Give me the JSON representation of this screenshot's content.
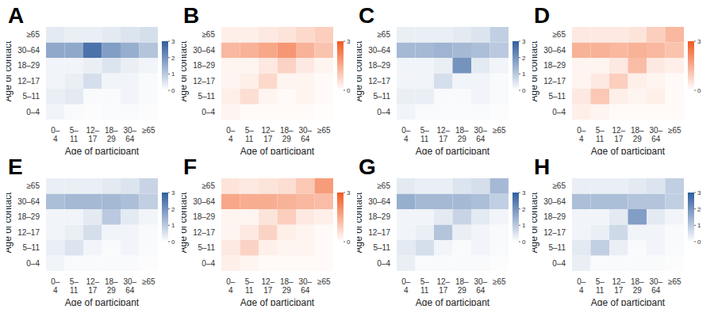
{
  "chart_data": [
    {
      "type": "heatmap",
      "title": "A",
      "x_label": "Age of participant",
      "y_label": "Age of contact",
      "categories": [
        "0–4",
        "5–11",
        "12–17",
        "18–29",
        "30–64",
        "≥65"
      ],
      "y_categories": [
        "0–4",
        "5–11",
        "12–17",
        "18–29",
        "30–64",
        "≥65"
      ],
      "color": "#2f5e9e",
      "colorbar_range": [
        0,
        3
      ],
      "colorbar_ticks": [
        0,
        1,
        2,
        3
      ],
      "cells": [
        [
          0.2,
          0.1,
          0.05,
          0.1,
          0.1,
          0.05
        ],
        [
          0.3,
          0.4,
          0.1,
          0.1,
          0.2,
          0.1
        ],
        [
          0.2,
          0.3,
          0.6,
          0.2,
          0.2,
          0.1
        ],
        [
          0.2,
          0.2,
          0.3,
          0.5,
          0.3,
          0.2
        ],
        [
          1.6,
          1.6,
          2.6,
          1.8,
          1.5,
          1.1
        ],
        [
          0.4,
          0.3,
          0.3,
          0.4,
          0.5,
          0.6
        ]
      ]
    },
    {
      "type": "heatmap",
      "title": "B",
      "x_label": "Age of participant",
      "y_label": "Age of contact",
      "categories": [
        "0–4",
        "5–11",
        "12–17",
        "18–29",
        "30–64",
        "≥65"
      ],
      "y_categories": [
        "0–4",
        "5–11",
        "12–17",
        "18–29",
        "30–64",
        "≥65"
      ],
      "color": "#f15a22",
      "colorbar_range": [
        0,
        3
      ],
      "colorbar_ticks": [
        0,
        3
      ],
      "cells": [
        [
          0.2,
          0.1,
          0.1,
          0.1,
          0.1,
          0.05
        ],
        [
          0.3,
          0.6,
          0.2,
          0.1,
          0.2,
          0.1
        ],
        [
          0.2,
          0.3,
          0.7,
          0.2,
          0.2,
          0.1
        ],
        [
          0.2,
          0.2,
          0.4,
          0.8,
          0.4,
          0.2
        ],
        [
          1.3,
          1.4,
          1.6,
          1.9,
          1.4,
          1.1
        ],
        [
          0.3,
          0.3,
          0.4,
          0.5,
          0.7,
          0.9
        ]
      ]
    },
    {
      "type": "heatmap",
      "title": "C",
      "x_label": "Age of participant",
      "y_label": "Age of contact",
      "categories": [
        "0–4",
        "5–11",
        "12–17",
        "18–29",
        "30–64",
        "≥65"
      ],
      "y_categories": [
        "0–4",
        "5–11",
        "12–17",
        "18–29",
        "30–64",
        "≥65"
      ],
      "color": "#2f5e9e",
      "colorbar_range": [
        0,
        3
      ],
      "colorbar_ticks": [
        0,
        1,
        2,
        3
      ],
      "cells": [
        [
          0.2,
          0.1,
          0.1,
          0.1,
          0.1,
          0.05
        ],
        [
          0.3,
          0.3,
          0.1,
          0.1,
          0.2,
          0.1
        ],
        [
          0.2,
          0.2,
          0.6,
          0.2,
          0.2,
          0.1
        ],
        [
          0.2,
          0.2,
          0.3,
          2.0,
          0.4,
          0.2
        ],
        [
          1.3,
          1.3,
          1.4,
          1.3,
          1.2,
          1.0
        ],
        [
          0.3,
          0.3,
          0.3,
          0.4,
          0.5,
          0.9
        ]
      ]
    },
    {
      "type": "heatmap",
      "title": "D",
      "x_label": "Age of participant",
      "y_label": "Age of contact",
      "categories": [
        "0–4",
        "5–11",
        "12–17",
        "18–29",
        "30–64",
        "≥65"
      ],
      "y_categories": [
        "0–4",
        "5–11",
        "12–17",
        "18–29",
        "30–64",
        "≥65"
      ],
      "color": "#f15a22",
      "colorbar_range": [
        0,
        3
      ],
      "colorbar_ticks": [
        0,
        3
      ],
      "cells": [
        [
          0.3,
          0.2,
          0.1,
          0.1,
          0.1,
          0.1
        ],
        [
          0.4,
          1.0,
          0.3,
          0.2,
          0.3,
          0.1
        ],
        [
          0.2,
          0.4,
          0.9,
          0.3,
          0.2,
          0.1
        ],
        [
          0.2,
          0.2,
          0.4,
          1.2,
          0.4,
          0.3
        ],
        [
          1.4,
          1.4,
          1.3,
          1.4,
          1.3,
          1.1
        ],
        [
          0.4,
          0.4,
          0.4,
          0.5,
          0.9,
          1.3
        ]
      ]
    },
    {
      "type": "heatmap",
      "title": "E",
      "x_label": "Age of participant",
      "y_label": "Age of contact",
      "categories": [
        "0–4",
        "5–11",
        "12–17",
        "18–29",
        "30–64",
        "≥65"
      ],
      "y_categories": [
        "0–4",
        "5–11",
        "12–17",
        "18–29",
        "30–64",
        "≥65"
      ],
      "color": "#2f5e9e",
      "colorbar_range": [
        0,
        3
      ],
      "colorbar_ticks": [
        0,
        1,
        2,
        3
      ],
      "cells": [
        [
          0.2,
          0.1,
          0.1,
          0.1,
          0.1,
          0.05
        ],
        [
          0.3,
          0.5,
          0.2,
          0.1,
          0.2,
          0.1
        ],
        [
          0.2,
          0.3,
          0.6,
          0.2,
          0.2,
          0.1
        ],
        [
          0.2,
          0.2,
          0.4,
          1.0,
          0.4,
          0.2
        ],
        [
          1.2,
          1.3,
          1.3,
          1.3,
          1.2,
          0.9
        ],
        [
          0.3,
          0.3,
          0.3,
          0.4,
          0.5,
          0.8
        ]
      ]
    },
    {
      "type": "heatmap",
      "title": "F",
      "x_label": "Age of participant",
      "y_label": "Age of contact",
      "categories": [
        "0–4",
        "5–11",
        "12–17",
        "18–29",
        "30–64",
        "≥65"
      ],
      "y_categories": [
        "0–4",
        "5–11",
        "12–17",
        "18–29",
        "30–64",
        "≥65"
      ],
      "color": "#f15a22",
      "colorbar_range": [
        0,
        3
      ],
      "colorbar_ticks": [
        0,
        3
      ],
      "cells": [
        [
          0.3,
          0.2,
          0.1,
          0.1,
          0.1,
          0.1
        ],
        [
          0.4,
          0.8,
          0.3,
          0.2,
          0.2,
          0.1
        ],
        [
          0.2,
          0.4,
          0.8,
          0.3,
          0.2,
          0.1
        ],
        [
          0.2,
          0.2,
          0.5,
          0.9,
          0.4,
          0.3
        ],
        [
          1.6,
          1.5,
          1.5,
          1.4,
          1.3,
          1.2
        ],
        [
          0.5,
          0.4,
          0.5,
          0.6,
          1.0,
          1.8
        ]
      ]
    },
    {
      "type": "heatmap",
      "title": "G",
      "x_label": "Age of participant",
      "y_label": "Age of contact",
      "categories": [
        "0–4",
        "5–11",
        "12–17",
        "18–29",
        "30–64",
        "≥65"
      ],
      "y_categories": [
        "0–4",
        "5–11",
        "12–17",
        "18–29",
        "30–64",
        "≥65"
      ],
      "color": "#2f5e9e",
      "colorbar_range": [
        0,
        3
      ],
      "colorbar_ticks": [
        0,
        1,
        2,
        3
      ],
      "cells": [
        [
          0.3,
          0.1,
          0.1,
          0.1,
          0.1,
          0.05
        ],
        [
          0.4,
          0.6,
          0.2,
          0.1,
          0.2,
          0.1
        ],
        [
          0.2,
          0.3,
          1.1,
          0.3,
          0.2,
          0.1
        ],
        [
          0.2,
          0.2,
          0.4,
          0.8,
          0.4,
          0.2
        ],
        [
          1.5,
          1.3,
          1.3,
          1.3,
          1.2,
          0.9
        ],
        [
          0.4,
          0.3,
          0.3,
          0.5,
          0.6,
          1.3
        ]
      ]
    },
    {
      "type": "heatmap",
      "title": "H",
      "x_label": "Age of participant",
      "y_label": "Age of contact",
      "categories": [
        "0–4",
        "5–11",
        "12–17",
        "18–29",
        "30–64",
        "≥65"
      ],
      "y_categories": [
        "0–4",
        "5–11",
        "12–17",
        "18–29",
        "30–64",
        "≥65"
      ],
      "color": "#2f5e9e",
      "colorbar_range": [
        0,
        3
      ],
      "colorbar_ticks": [
        0,
        1,
        2,
        3
      ],
      "cells": [
        [
          0.3,
          0.1,
          0.1,
          0.1,
          0.1,
          0.05
        ],
        [
          0.4,
          0.9,
          0.3,
          0.1,
          0.2,
          0.1
        ],
        [
          0.2,
          0.3,
          0.7,
          0.2,
          0.2,
          0.1
        ],
        [
          0.2,
          0.2,
          0.4,
          1.8,
          0.4,
          0.2
        ],
        [
          1.2,
          1.2,
          1.2,
          1.1,
          1.1,
          0.9
        ],
        [
          0.3,
          0.3,
          0.3,
          0.4,
          0.5,
          0.9
        ]
      ]
    }
  ]
}
